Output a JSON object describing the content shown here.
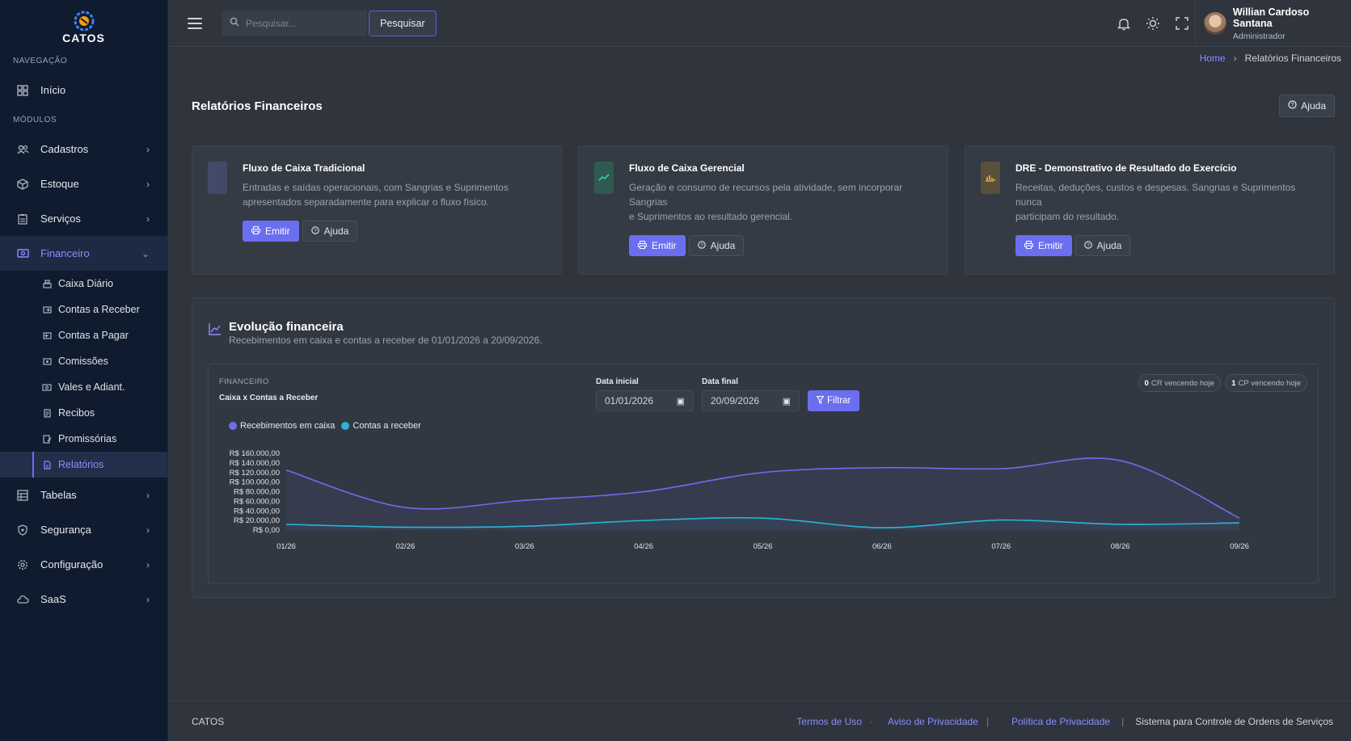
{
  "brand": {
    "name": "CATOS"
  },
  "sidebar": {
    "sections": {
      "nav": "NAVEGAÇÃO",
      "modules": "MÓDULOS"
    },
    "home": {
      "label": "Início",
      "icon": "dashboard-icon"
    },
    "items": [
      {
        "label": "Cadastros",
        "icon": "users-icon"
      },
      {
        "label": "Estoque",
        "icon": "box-icon"
      },
      {
        "label": "Serviços",
        "icon": "clipboard-icon"
      },
      {
        "label": "Financeiro",
        "icon": "money-icon",
        "active": true
      }
    ],
    "financeiro_sub": [
      {
        "label": "Caixa Diário",
        "icon": "register-icon"
      },
      {
        "label": "Contas a Receber",
        "icon": "cash-in-icon"
      },
      {
        "label": "Contas a Pagar",
        "icon": "cash-out-icon"
      },
      {
        "label": "Comissões",
        "icon": "commission-icon"
      },
      {
        "label": "Vales e Adiant.",
        "icon": "voucher-icon"
      },
      {
        "label": "Recibos",
        "icon": "receipt-icon"
      },
      {
        "label": "Promissórias",
        "icon": "promissory-icon"
      },
      {
        "label": "Relatórios",
        "icon": "report-icon",
        "active": true
      }
    ],
    "items_after": [
      {
        "label": "Tabelas",
        "icon": "table-icon"
      },
      {
        "label": "Segurança",
        "icon": "shield-icon"
      },
      {
        "label": "Configuração",
        "icon": "gear-icon"
      },
      {
        "label": "SaaS",
        "icon": "cloud-icon"
      }
    ]
  },
  "topbar": {
    "search_placeholder": "Pesquisar...",
    "search_button": "Pesquisar",
    "user": {
      "name": "Willian Cardoso Santana",
      "role": "Administrador"
    }
  },
  "breadcrumb": {
    "home": "Home",
    "current": "Relatórios Financeiros"
  },
  "page": {
    "title": "Relatórios Financeiros",
    "help": "Ajuda"
  },
  "cards": [
    {
      "title": "Fluxo de Caixa Tradicional",
      "line1": "Entradas e saídas operacionais, com Sangrias e Suprimentos",
      "line2": "apresentados separadamente para explicar o fluxo físico.",
      "emit": "Emitir",
      "help": "Ajuda",
      "icon": "cash-flow-icon",
      "icon_color": "#4a5270"
    },
    {
      "title": "Fluxo de Caixa Gerencial",
      "line1": "Geração e consumo de recursos pela atividade, sem incorporar Sangrias",
      "line2": "e Suprimentos ao resultado gerencial.",
      "emit": "Emitir",
      "help": "Ajuda",
      "icon": "trend-up-icon",
      "icon_color": "#2f5a52"
    },
    {
      "title": "DRE - Demonstrativo de Resultado do Exercício",
      "line1": "Receitas, deduções, custos e despesas. Sangrias e Suprimentos nunca",
      "line2": "participam do resultado.",
      "emit": "Emitir",
      "help": "Ajuda",
      "icon": "chart-hand-icon",
      "icon_color": "#5a4f3a"
    }
  ],
  "evolution": {
    "title": "Evolução financeira",
    "subtitle": "Recebimentos em caixa e contas a receber de 01/01/2026 a 20/09/2026.",
    "kicker": "FINANCEIRO",
    "heading": "Caixa x Contas a Receber",
    "start_label": "Data inicial",
    "start_value": "01/01/2026",
    "end_label": "Data final",
    "end_value": "20/09/2026",
    "filter": "Filtrar",
    "pills": [
      {
        "count": "0",
        "text": "CR vencendo hoje"
      },
      {
        "count": "1",
        "text": "CP vencendo hoje"
      }
    ]
  },
  "chart_data": {
    "type": "line",
    "title": "Caixa x Contas a Receber",
    "categories": [
      "01/26",
      "02/26",
      "03/26",
      "04/26",
      "05/26",
      "06/26",
      "07/26",
      "08/26",
      "09/26"
    ],
    "series": [
      {
        "name": "Recebimentos em caixa",
        "color": "#6c6ef0",
        "values": [
          125000,
          47000,
          62000,
          80000,
          120000,
          130000,
          128000,
          145000,
          25000
        ]
      },
      {
        "name": "Contas a receber",
        "color": "#2bb5d8",
        "values": [
          12000,
          6000,
          8000,
          20000,
          25000,
          5000,
          21000,
          12000,
          15000
        ]
      }
    ],
    "ylim": [
      0,
      160000
    ],
    "yticks": [
      "R$ 0,00",
      "R$ 20.000,00",
      "R$ 40.000,00",
      "R$ 60.000,00",
      "R$ 80.000,00",
      "R$ 100.000,00",
      "R$ 120.000,00",
      "R$ 140.000,00",
      "R$ 160.000,00"
    ],
    "legend": "top-left",
    "grid": false
  },
  "footer": {
    "brand": "CATOS",
    "terms": "Termos de Uso",
    "notice": "Aviso de Privacidade",
    "policy": "Política de Privacidade",
    "tagline": "Sistema para Controle de Ordens de Serviços",
    "sep_dot": "·",
    "sep_bar": "|"
  }
}
